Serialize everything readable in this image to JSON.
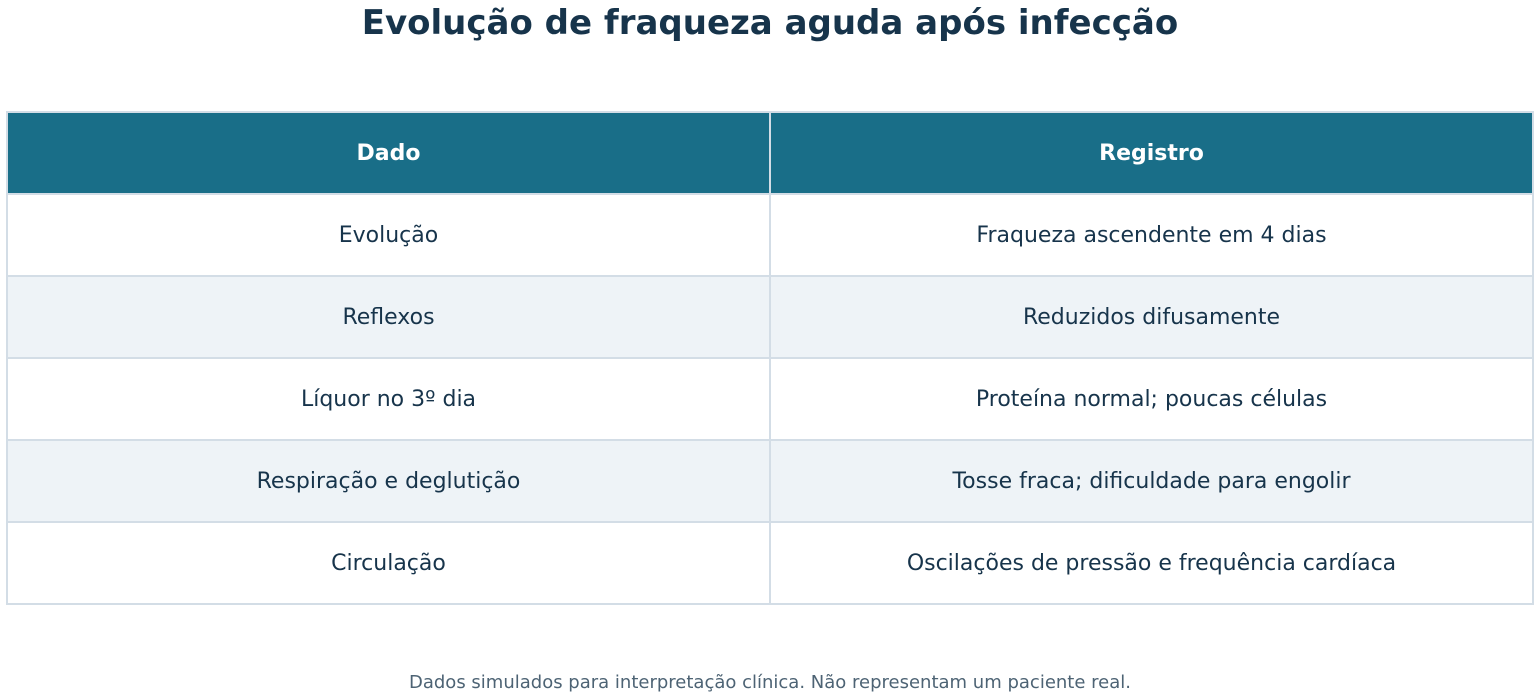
{
  "title": "Evolução de fraqueza aguda após infecção",
  "table": {
    "header": [
      "Dado",
      "Registro"
    ],
    "rows": [
      [
        "Evolução",
        "Fraqueza ascendente em 4 dias"
      ],
      [
        "Reflexos",
        "Reduzidos difusamente"
      ],
      [
        "Líquor no 3º dia",
        "Proteína normal; poucas células"
      ],
      [
        "Respiração e deglutição",
        "Tosse fraca; dificuldade para engolir"
      ],
      [
        "Circulação",
        "Oscilações de pressão e frequência cardíaca"
      ]
    ]
  },
  "footnote": "Dados simulados para interpretação clínica. Não representam um paciente real."
}
